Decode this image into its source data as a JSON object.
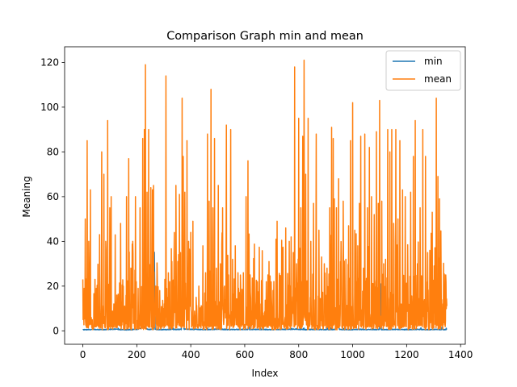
{
  "chart_data": {
    "type": "line",
    "title": "Comparison Graph min and mean",
    "xlabel": "Index",
    "ylabel": "Meaning",
    "xlim": [
      -67.5,
      1417.5
    ],
    "ylim": [
      -6,
      127
    ],
    "xticks": [
      0,
      200,
      400,
      600,
      800,
      1000,
      1200,
      1400
    ],
    "yticks": [
      0,
      20,
      40,
      60,
      80,
      100,
      120
    ],
    "grid": false,
    "legend_position": "upper right",
    "n_points": 1350,
    "series": [
      {
        "name": "min",
        "color": "#1f77b4",
        "points": [
          [
            0,
            0.3
          ],
          [
            40,
            0.5
          ],
          [
            80,
            0.4
          ],
          [
            120,
            0.6
          ],
          [
            160,
            0.3
          ],
          [
            200,
            0.5
          ],
          [
            230,
            1.5
          ],
          [
            240,
            0.5
          ],
          [
            262,
            0.5
          ],
          [
            265,
            35
          ],
          [
            268,
            0.5
          ],
          [
            300,
            0.4
          ],
          [
            330,
            0.5
          ],
          [
            365,
            0.5
          ],
          [
            370,
            40
          ],
          [
            375,
            0.6
          ],
          [
            420,
            0.5
          ],
          [
            460,
            0.4
          ],
          [
            500,
            0.6
          ],
          [
            540,
            0.4
          ],
          [
            580,
            0.5
          ],
          [
            612,
            0.5
          ],
          [
            615,
            6
          ],
          [
            618,
            0.4
          ],
          [
            660,
            0.5
          ],
          [
            700,
            0.4
          ],
          [
            740,
            0.5
          ],
          [
            780,
            0.6
          ],
          [
            820,
            0.4
          ],
          [
            860,
            0.5
          ],
          [
            900,
            0.4
          ],
          [
            940,
            0.5
          ],
          [
            946,
            11
          ],
          [
            950,
            0.5
          ],
          [
            990,
            0.4
          ],
          [
            1030,
            0.5
          ],
          [
            1070,
            0.4
          ],
          [
            1100,
            0.5
          ],
          [
            1103,
            21
          ],
          [
            1106,
            0.4
          ],
          [
            1150,
            0.5
          ],
          [
            1190,
            0.4
          ],
          [
            1230,
            0.5
          ],
          [
            1270,
            0.4
          ],
          [
            1310,
            0.5
          ],
          [
            1350,
            0.4
          ]
        ]
      },
      {
        "name": "mean",
        "color": "#ff7f0e",
        "peaks": [
          [
            0,
            23
          ],
          [
            5,
            19
          ],
          [
            9,
            50
          ],
          [
            16,
            85
          ],
          [
            22,
            40
          ],
          [
            28,
            63
          ],
          [
            35,
            5
          ],
          [
            45,
            23
          ],
          [
            55,
            8
          ],
          [
            62,
            43
          ],
          [
            70,
            80
          ],
          [
            78,
            70
          ],
          [
            85,
            40
          ],
          [
            92,
            94
          ],
          [
            100,
            55
          ],
          [
            105,
            60
          ],
          [
            115,
            12
          ],
          [
            125,
            6
          ],
          [
            140,
            48
          ],
          [
            150,
            20
          ],
          [
            162,
            60
          ],
          [
            170,
            77
          ],
          [
            178,
            28
          ],
          [
            185,
            40
          ],
          [
            195,
            60
          ],
          [
            205,
            19
          ],
          [
            212,
            55
          ],
          [
            222,
            86
          ],
          [
            228,
            90
          ],
          [
            232,
            119
          ],
          [
            238,
            62
          ],
          [
            244,
            90
          ],
          [
            252,
            64
          ],
          [
            258,
            63
          ],
          [
            262,
            65
          ],
          [
            270,
            20
          ],
          [
            285,
            18
          ],
          [
            300,
            10
          ],
          [
            308,
            114
          ],
          [
            315,
            15
          ],
          [
            322,
            22
          ],
          [
            330,
            31
          ],
          [
            338,
            32
          ],
          [
            345,
            65
          ],
          [
            352,
            31
          ],
          [
            358,
            61
          ],
          [
            362,
            35
          ],
          [
            368,
            104
          ],
          [
            372,
            78
          ],
          [
            378,
            62
          ],
          [
            386,
            85
          ],
          [
            392,
            40
          ],
          [
            400,
            44
          ],
          [
            408,
            49
          ],
          [
            420,
            15
          ],
          [
            430,
            20
          ],
          [
            445,
            38
          ],
          [
            455,
            26
          ],
          [
            462,
            88
          ],
          [
            468,
            58
          ],
          [
            475,
            108
          ],
          [
            482,
            55
          ],
          [
            488,
            86
          ],
          [
            495,
            28
          ],
          [
            502,
            65
          ],
          [
            510,
            30
          ],
          [
            518,
            55
          ],
          [
            525,
            20
          ],
          [
            532,
            92
          ],
          [
            540,
            25
          ],
          [
            548,
            90
          ],
          [
            555,
            32
          ],
          [
            565,
            38
          ],
          [
            575,
            26
          ],
          [
            585,
            20
          ],
          [
            595,
            26
          ],
          [
            605,
            60
          ],
          [
            612,
            76
          ],
          [
            620,
            25
          ],
          [
            630,
            20
          ],
          [
            645,
            10
          ],
          [
            660,
            12
          ],
          [
            680,
            22
          ],
          [
            690,
            31
          ],
          [
            705,
            18
          ],
          [
            720,
            49
          ],
          [
            735,
            22
          ],
          [
            752,
            46
          ],
          [
            765,
            40
          ],
          [
            772,
            42
          ],
          [
            780,
            35
          ],
          [
            785,
            118
          ],
          [
            792,
            30
          ],
          [
            800,
            95
          ],
          [
            808,
            55
          ],
          [
            815,
            87
          ],
          [
            820,
            121
          ],
          [
            826,
            70
          ],
          [
            835,
            95
          ],
          [
            845,
            40
          ],
          [
            855,
            57
          ],
          [
            865,
            88
          ],
          [
            875,
            45
          ],
          [
            885,
            33
          ],
          [
            895,
            30
          ],
          [
            905,
            28
          ],
          [
            915,
            55
          ],
          [
            922,
            91
          ],
          [
            928,
            86
          ],
          [
            932,
            59
          ],
          [
            940,
            55
          ],
          [
            948,
            68
          ],
          [
            958,
            32
          ],
          [
            965,
            58
          ],
          [
            975,
            32
          ],
          [
            985,
            47
          ],
          [
            992,
            85
          ],
          [
            1000,
            102
          ],
          [
            1008,
            45
          ],
          [
            1015,
            22
          ],
          [
            1025,
            57
          ],
          [
            1030,
            87
          ],
          [
            1040,
            28
          ],
          [
            1045,
            88
          ],
          [
            1055,
            55
          ],
          [
            1062,
            82
          ],
          [
            1070,
            60
          ],
          [
            1080,
            52
          ],
          [
            1088,
            89
          ],
          [
            1095,
            57
          ],
          [
            1100,
            103
          ],
          [
            1108,
            58
          ],
          [
            1115,
            30
          ],
          [
            1122,
            32
          ],
          [
            1130,
            90
          ],
          [
            1138,
            80
          ],
          [
            1145,
            90
          ],
          [
            1152,
            48
          ],
          [
            1160,
            90
          ],
          [
            1168,
            50
          ],
          [
            1175,
            85
          ],
          [
            1185,
            63
          ],
          [
            1195,
            60
          ],
          [
            1205,
            22
          ],
          [
            1215,
            62
          ],
          [
            1225,
            78
          ],
          [
            1232,
            94
          ],
          [
            1240,
            30
          ],
          [
            1250,
            55
          ],
          [
            1260,
            90
          ],
          [
            1270,
            78
          ],
          [
            1278,
            35
          ],
          [
            1286,
            36
          ],
          [
            1295,
            53
          ],
          [
            1302,
            29
          ],
          [
            1310,
            104
          ],
          [
            1316,
            69
          ],
          [
            1322,
            59
          ],
          [
            1328,
            24
          ],
          [
            1335,
            12
          ],
          [
            1340,
            25
          ],
          [
            1345,
            25
          ]
        ]
      }
    ]
  }
}
